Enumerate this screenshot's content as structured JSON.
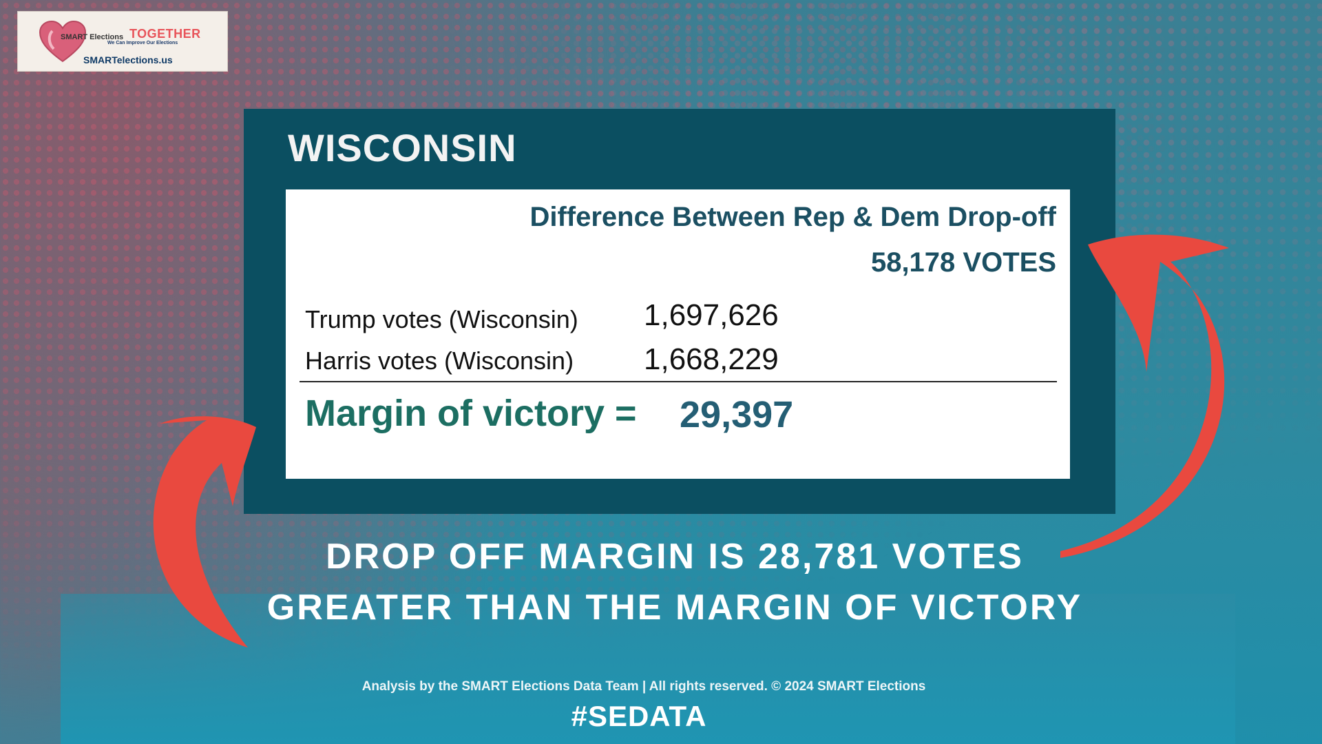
{
  "logo": {
    "brand": "SMART Elections",
    "headline": "TOGETHER",
    "tagline": "We Can Improve Our Elections",
    "url": "SMARTelections.us"
  },
  "panel": {
    "state": "WISCONSIN",
    "diff_title": "Difference Between Rep & Dem Drop-off",
    "diff_votes": "58,178 VOTES",
    "rows": [
      {
        "label": "Trump votes (Wisconsin)",
        "value": "1,697,626"
      },
      {
        "label": "Harris votes (Wisconsin)",
        "value": "1,668,229"
      }
    ],
    "margin_label": "Margin of victory =",
    "margin_value": "29,397"
  },
  "headline": {
    "line1": "DROP OFF MARGIN IS 28,781 VOTES",
    "line2": "GREATER THAN THE MARGIN OF VICTORY"
  },
  "footer": {
    "credit": "Analysis by the SMART Elections Data Team  | All rights reserved. © 2024 SMART Elections",
    "hashtag": "#SEDATA"
  },
  "colors": {
    "panel": "#0b4f61",
    "arrow": "#e9493f",
    "accent_red": "#e8545a",
    "margin_green": "#1c6e62",
    "title_teal": "#1b4f62"
  }
}
